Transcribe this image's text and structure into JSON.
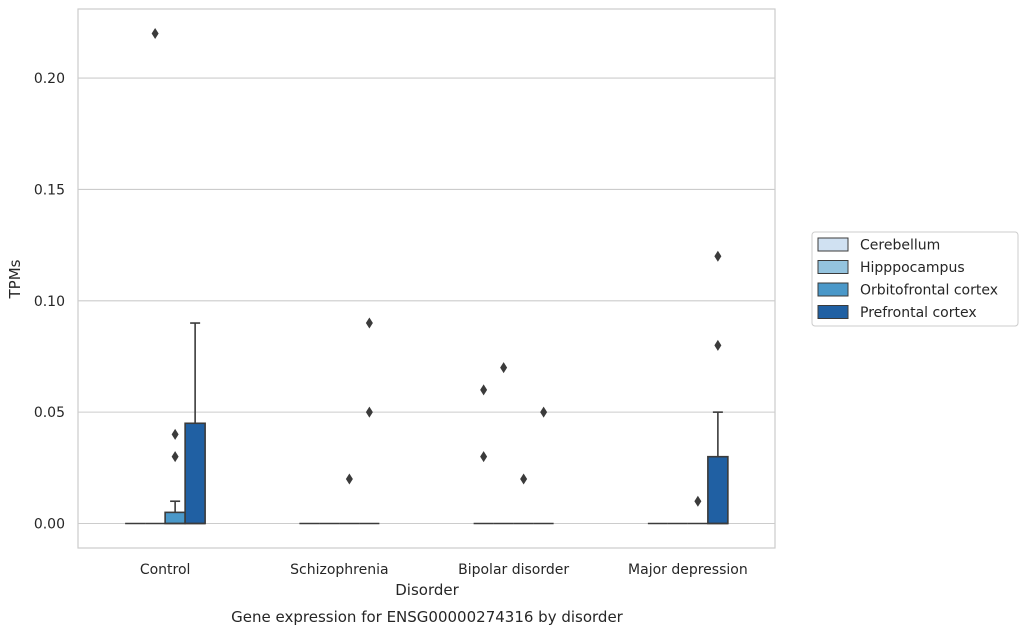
{
  "chart_data": {
    "type": "box",
    "title": "",
    "caption": "Gene expression for ENSG00000274316 by disorder",
    "xlabel": "Disorder",
    "ylabel": "TPMs",
    "categories": [
      "Control",
      "Schizophrenia",
      "Bipolar disorder",
      "Major depression"
    ],
    "ylim": [
      -0.011,
      0.231
    ],
    "yticks": [
      0.0,
      0.05,
      0.1,
      0.15,
      0.2
    ],
    "ytick_labels": [
      "0.00",
      "0.05",
      "0.10",
      "0.15",
      "0.20"
    ],
    "grid": true,
    "legend_position": "right",
    "series": [
      {
        "name": "Cerebellum",
        "color": "#d0e1f2",
        "boxes": [
          {
            "category": "Control",
            "min": 0.0,
            "q1": 0.0,
            "median": 0.0,
            "q3": 0.0,
            "max": 0.0,
            "outliers": []
          },
          {
            "category": "Schizophrenia",
            "min": 0.0,
            "q1": 0.0,
            "median": 0.0,
            "q3": 0.0,
            "max": 0.0,
            "outliers": []
          },
          {
            "category": "Bipolar disorder",
            "min": 0.0,
            "q1": 0.0,
            "median": 0.0,
            "q3": 0.0,
            "max": 0.0,
            "outliers": [
              0.06,
              0.03
            ]
          },
          {
            "category": "Major depression",
            "min": 0.0,
            "q1": 0.0,
            "median": 0.0,
            "q3": 0.0,
            "max": 0.0,
            "outliers": []
          }
        ]
      },
      {
        "name": "Hipppocampus",
        "color": "#94c4df",
        "boxes": [
          {
            "category": "Control",
            "min": 0.0,
            "q1": 0.0,
            "median": 0.0,
            "q3": 0.0,
            "max": 0.0,
            "outliers": [
              0.22
            ]
          },
          {
            "category": "Schizophrenia",
            "min": 0.0,
            "q1": 0.0,
            "median": 0.0,
            "q3": 0.0,
            "max": 0.0,
            "outliers": []
          },
          {
            "category": "Bipolar disorder",
            "min": 0.0,
            "q1": 0.0,
            "median": 0.0,
            "q3": 0.0,
            "max": 0.0,
            "outliers": [
              0.07
            ]
          },
          {
            "category": "Major depression",
            "min": 0.0,
            "q1": 0.0,
            "median": 0.0,
            "q3": 0.0,
            "max": 0.0,
            "outliers": []
          }
        ]
      },
      {
        "name": "Orbitofrontal cortex",
        "color": "#4a98c9",
        "boxes": [
          {
            "category": "Control",
            "min": 0.0,
            "q1": 0.0,
            "median": 0.0,
            "q3": 0.005,
            "max": 0.01,
            "outliers": [
              0.04,
              0.03
            ]
          },
          {
            "category": "Schizophrenia",
            "min": 0.0,
            "q1": 0.0,
            "median": 0.0,
            "q3": 0.0,
            "max": 0.0,
            "outliers": [
              0.02
            ]
          },
          {
            "category": "Bipolar disorder",
            "min": 0.0,
            "q1": 0.0,
            "median": 0.0,
            "q3": 0.0,
            "max": 0.0,
            "outliers": [
              0.02
            ]
          },
          {
            "category": "Major depression",
            "min": 0.0,
            "q1": 0.0,
            "median": 0.0,
            "q3": 0.0,
            "max": 0.0,
            "outliers": [
              0.01
            ]
          }
        ]
      },
      {
        "name": "Prefrontal cortex",
        "color": "#2060a3",
        "boxes": [
          {
            "category": "Control",
            "min": 0.0,
            "q1": 0.0,
            "median": 0.0,
            "q3": 0.045,
            "max": 0.09,
            "outliers": []
          },
          {
            "category": "Schizophrenia",
            "min": 0.0,
            "q1": 0.0,
            "median": 0.0,
            "q3": 0.0,
            "max": 0.0,
            "outliers": [
              0.09,
              0.05
            ]
          },
          {
            "category": "Bipolar disorder",
            "min": 0.0,
            "q1": 0.0,
            "median": 0.0,
            "q3": 0.0,
            "max": 0.0,
            "outliers": [
              0.05
            ]
          },
          {
            "category": "Major depression",
            "min": 0.0,
            "q1": 0.0,
            "median": 0.0,
            "q3": 0.03,
            "max": 0.05,
            "outliers": [
              0.12,
              0.08
            ]
          }
        ]
      }
    ]
  }
}
